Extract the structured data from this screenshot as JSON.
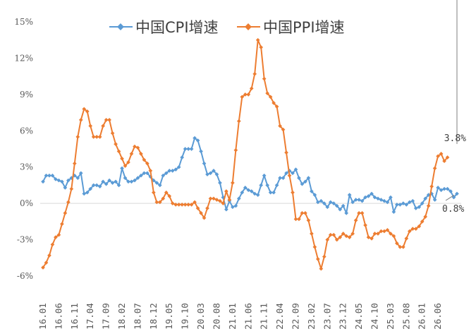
{
  "chart_data": {
    "type": "line",
    "title": "",
    "xlabel": "",
    "ylabel": "",
    "ylim": [
      -0.06,
      0.15
    ],
    "yticks": [
      -0.06,
      -0.03,
      0,
      0.03,
      0.06,
      0.09,
      0.12,
      0.15
    ],
    "ytick_labels": [
      "-6%",
      "-3%",
      "0%",
      "3%",
      "6%",
      "9%",
      "12%",
      "15%"
    ],
    "xtick_labels": [
      "16.01",
      "16.06",
      "16.11",
      "17.04",
      "17.09",
      "18.02",
      "18.07",
      "18.12",
      "19.05",
      "19.10",
      "20.03",
      "20.08",
      "21.01",
      "21.06",
      "21.11",
      "22.04",
      "22.09",
      "23.02",
      "23.07",
      "23.12",
      "24.05",
      "24.10",
      "25.03",
      "25.08",
      "26.01",
      "26.06"
    ],
    "grid": false,
    "legend_position": "top",
    "series": [
      {
        "name": "中国CPI增速",
        "color": "#5B9BD5",
        "marker": "diamond",
        "values": [
          0.018,
          0.023,
          0.023,
          0.023,
          0.02,
          0.019,
          0.018,
          0.013,
          0.019,
          0.021,
          0.023,
          0.021,
          0.025,
          0.008,
          0.009,
          0.012,
          0.015,
          0.015,
          0.014,
          0.018,
          0.016,
          0.019,
          0.017,
          0.018,
          0.015,
          0.029,
          0.021,
          0.018,
          0.018,
          0.019,
          0.021,
          0.023,
          0.025,
          0.025,
          0.022,
          0.019,
          0.017,
          0.015,
          0.023,
          0.025,
          0.027,
          0.027,
          0.028,
          0.03,
          0.038,
          0.045,
          0.045,
          0.045,
          0.054,
          0.052,
          0.043,
          0.033,
          0.024,
          0.025,
          0.027,
          0.024,
          0.017,
          0.005,
          -0.005,
          0.002,
          -0.003,
          -0.002,
          0.004,
          0.009,
          0.013,
          0.011,
          0.01,
          0.008,
          0.007,
          0.015,
          0.023,
          0.015,
          0.009,
          0.009,
          0.015,
          0.021,
          0.021,
          0.025,
          0.027,
          0.025,
          0.028,
          0.021,
          0.016,
          0.018,
          0.021,
          0.01,
          0.007,
          0.001,
          0.002,
          0.0,
          -0.003,
          0.001,
          0.0,
          -0.002,
          -0.005,
          -0.002,
          -0.008,
          0.007,
          0.001,
          0.003,
          0.003,
          0.002,
          0.005,
          0.006,
          0.008,
          0.005,
          0.004,
          0.003,
          0.002,
          0.001,
          0.005,
          -0.007,
          -0.001,
          -0.001,
          0.0,
          -0.001,
          0.001,
          0.002,
          -0.004,
          -0.003,
          0.0,
          0.004,
          0.007,
          0.008,
          0.003,
          0.013,
          0.011,
          0.012,
          0.012,
          0.01,
          0.005,
          0.008
        ]
      },
      {
        "name": "中国PPI增速",
        "color": "#ED7D31",
        "marker": "diamond",
        "values": [
          -0.053,
          -0.049,
          -0.043,
          -0.034,
          -0.028,
          -0.026,
          -0.017,
          -0.008,
          0.001,
          0.012,
          0.033,
          0.055,
          0.069,
          0.078,
          0.076,
          0.064,
          0.055,
          0.055,
          0.055,
          0.064,
          0.069,
          0.069,
          0.058,
          0.049,
          0.043,
          0.037,
          0.031,
          0.034,
          0.041,
          0.047,
          0.046,
          0.041,
          0.036,
          0.033,
          0.027,
          0.009,
          0.001,
          0.001,
          0.004,
          0.009,
          0.006,
          0.0,
          -0.001,
          -0.001,
          -0.001,
          -0.001,
          -0.001,
          -0.001,
          0.001,
          -0.004,
          -0.008,
          -0.012,
          -0.004,
          0.004,
          0.004,
          0.003,
          0.002,
          0.0,
          0.01,
          0.003,
          0.017,
          0.044,
          0.068,
          0.088,
          0.09,
          0.09,
          0.095,
          0.107,
          0.135,
          0.129,
          0.103,
          0.091,
          0.088,
          0.083,
          0.08,
          0.064,
          0.061,
          0.042,
          0.023,
          0.009,
          -0.013,
          -0.013,
          -0.008,
          -0.008,
          -0.014,
          -0.025,
          -0.036,
          -0.046,
          -0.054,
          -0.044,
          -0.03,
          -0.026,
          -0.026,
          -0.03,
          -0.028,
          -0.025,
          -0.027,
          -0.028,
          -0.025,
          -0.014,
          -0.008,
          -0.008,
          -0.018,
          -0.028,
          -0.029,
          -0.025,
          -0.025,
          -0.023,
          -0.023,
          -0.022,
          -0.025,
          -0.027,
          -0.033,
          -0.036,
          -0.036,
          -0.029,
          -0.023,
          -0.021,
          -0.021,
          -0.019,
          -0.015,
          -0.011,
          -0.002,
          0.014,
          0.029,
          0.039,
          0.041,
          0.035,
          0.038
        ]
      }
    ],
    "annotations": [
      {
        "text": "3.8%",
        "series": "中国PPI增速"
      },
      {
        "text": "0.8%",
        "series": "中国CPI增速"
      }
    ]
  }
}
